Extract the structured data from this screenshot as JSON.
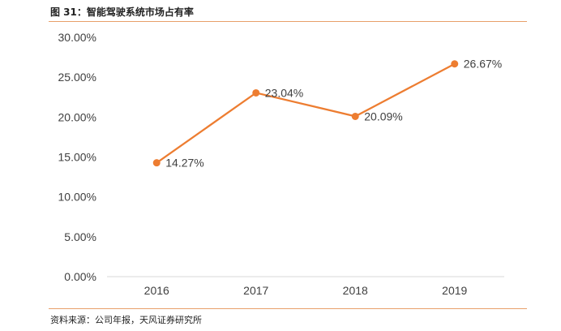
{
  "figure": {
    "caption": "图 31：智能驾驶系统市场占有率",
    "source": "资料来源：公司年报，天风证券研究所"
  },
  "chart_data": {
    "type": "line",
    "categories": [
      "2016",
      "2017",
      "2018",
      "2019"
    ],
    "series": [
      {
        "name": "",
        "values": [
          14.27,
          23.04,
          20.09,
          26.67
        ],
        "labels": [
          "14.27%",
          "23.04%",
          "20.09%",
          "26.67%"
        ],
        "color": "#ed7d31"
      }
    ],
    "y_ticks": [
      "0.00%",
      "5.00%",
      "10.00%",
      "15.00%",
      "20.00%",
      "25.00%",
      "30.00%"
    ],
    "ylim": [
      0,
      30
    ],
    "grid": false,
    "legend": "none",
    "colors": {
      "line": "#ed7d31",
      "axis": "#d9d9d9",
      "text": "#404040"
    }
  }
}
